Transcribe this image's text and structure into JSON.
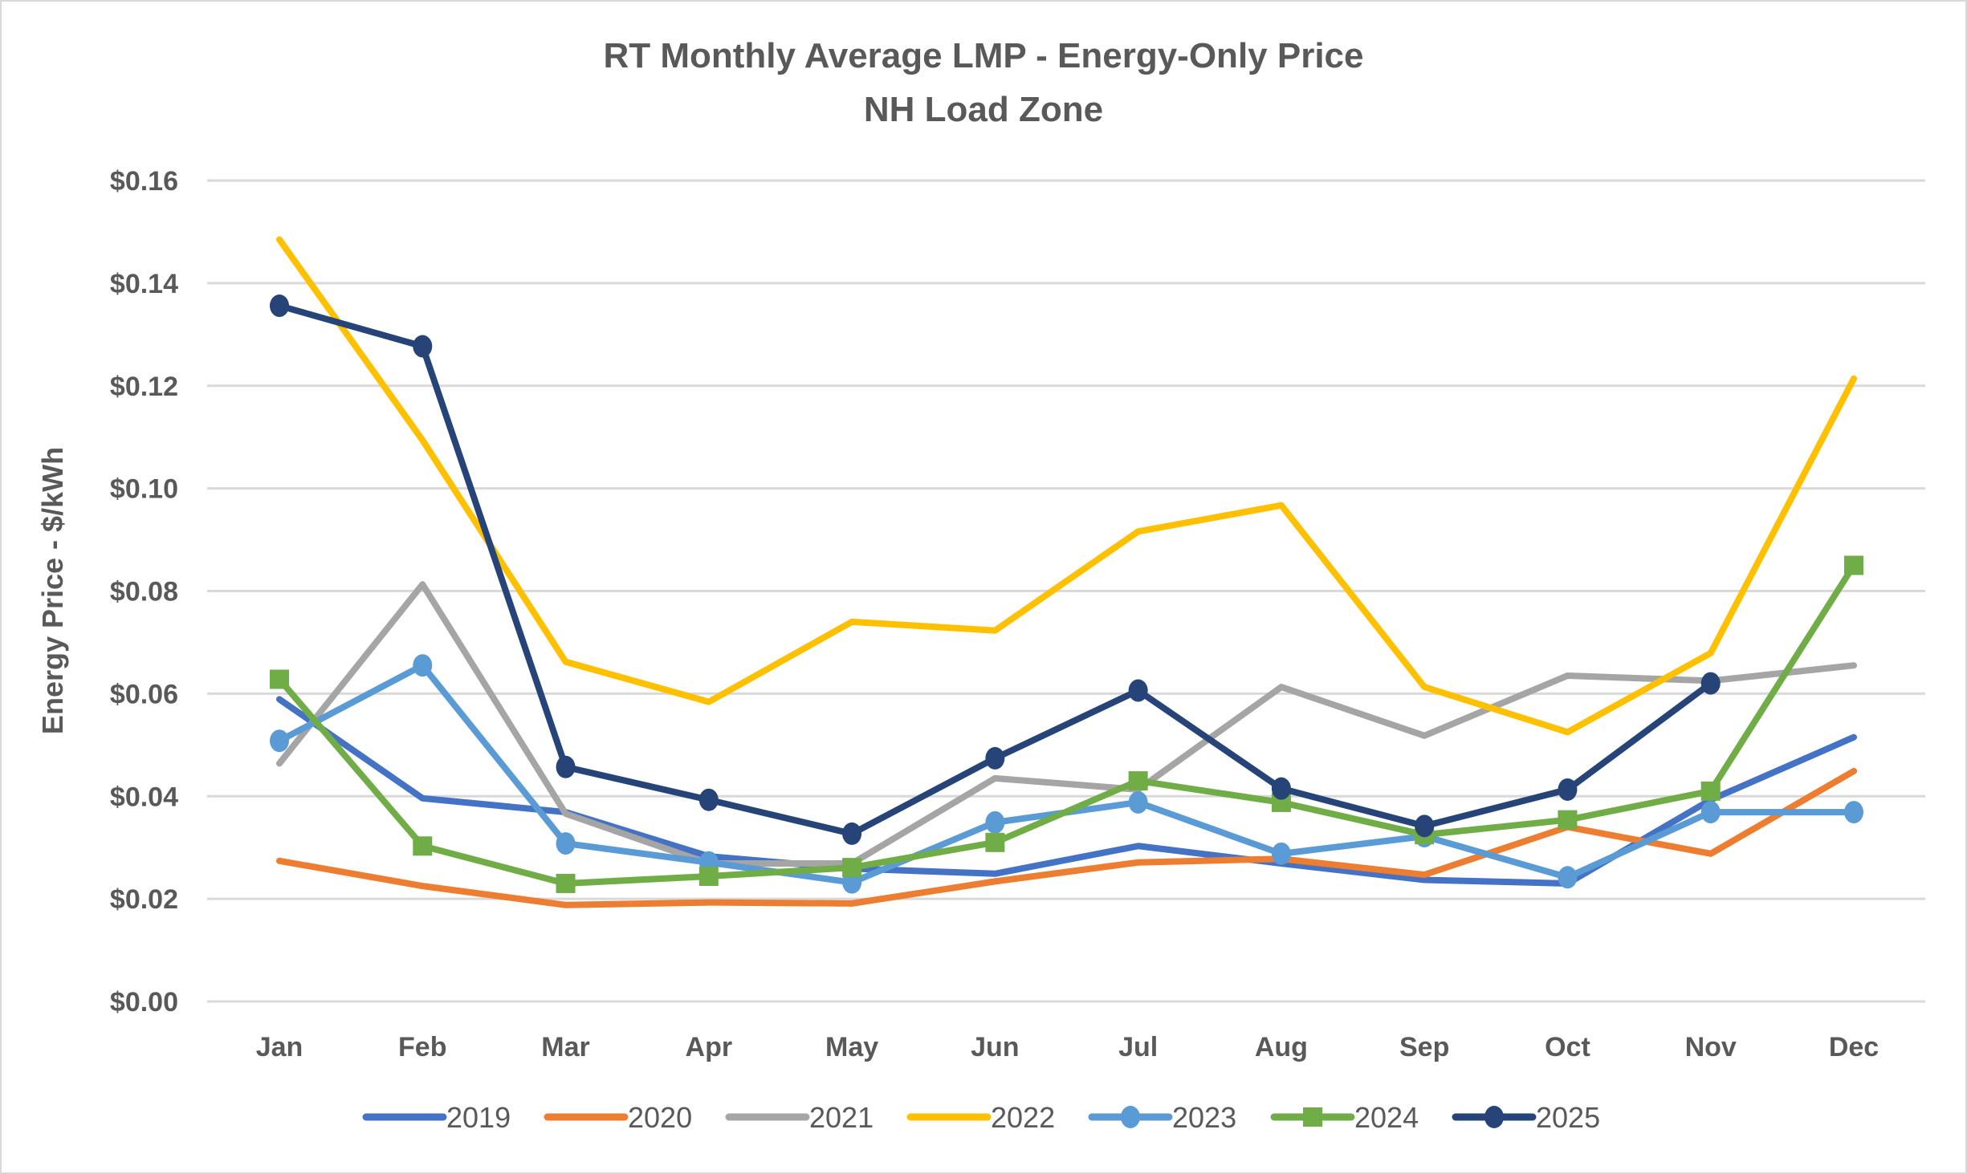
{
  "chart_data": {
    "type": "line",
    "title": "RT Monthly Average LMP - Energy-Only Price",
    "subtitle": "NH Load Zone",
    "xlabel": "",
    "ylabel": "Energy Price - $/kWh",
    "ylim": [
      0,
      0.16
    ],
    "yticks": [
      0,
      0.02,
      0.04,
      0.06,
      0.08,
      0.1,
      0.12,
      0.14,
      0.16
    ],
    "ytick_labels": [
      "$0.00",
      "$0.02",
      "$0.04",
      "$0.06",
      "$0.08",
      "$0.10",
      "$0.12",
      "$0.14",
      "$0.16"
    ],
    "grid": true,
    "legend_position": "bottom",
    "categories": [
      "Jan",
      "Feb",
      "Mar",
      "Apr",
      "May",
      "Jun",
      "Jul",
      "Aug",
      "Sep",
      "Oct",
      "Nov",
      "Dec"
    ],
    "series": [
      {
        "name": "2019",
        "color": "#4472c4",
        "marker": "none",
        "values": [
          0.0589,
          0.0396,
          0.0369,
          0.0283,
          0.0259,
          0.0249,
          0.0303,
          0.0269,
          0.0237,
          0.023,
          0.0393,
          0.0515
        ]
      },
      {
        "name": "2020",
        "color": "#ed7d31",
        "marker": "none",
        "values": [
          0.0274,
          0.0225,
          0.0188,
          0.0193,
          0.0191,
          0.0234,
          0.0271,
          0.0278,
          0.0247,
          0.034,
          0.0288,
          0.0449
        ]
      },
      {
        "name": "2021",
        "color": "#a5a5a5",
        "marker": "none",
        "values": [
          0.0464,
          0.0813,
          0.0366,
          0.0269,
          0.0269,
          0.0435,
          0.0413,
          0.0613,
          0.0518,
          0.0635,
          0.0625,
          0.0655
        ]
      },
      {
        "name": "2022",
        "color": "#ffc000",
        "marker": "none",
        "values": [
          0.1485,
          0.1094,
          0.0662,
          0.0584,
          0.074,
          0.0723,
          0.0916,
          0.0967,
          0.0613,
          0.0525,
          0.0679,
          0.1214
        ]
      },
      {
        "name": "2023",
        "color": "#5b9bd5",
        "marker": "circle",
        "values": [
          0.0508,
          0.0655,
          0.0308,
          0.0271,
          0.0232,
          0.0349,
          0.0388,
          0.0288,
          0.0322,
          0.0242,
          0.0369,
          0.0369
        ]
      },
      {
        "name": "2024",
        "color": "#70ad47",
        "marker": "square",
        "values": [
          0.0628,
          0.0303,
          0.023,
          0.0244,
          0.0261,
          0.031,
          0.043,
          0.0388,
          0.0325,
          0.0354,
          0.041,
          0.085
        ]
      },
      {
        "name": "2025",
        "color": "#264478",
        "marker": "circle",
        "values": [
          0.1356,
          0.1277,
          0.0457,
          0.0393,
          0.0327,
          0.0474,
          0.0606,
          0.0415,
          0.0342,
          0.0413,
          0.062,
          null
        ]
      }
    ]
  }
}
